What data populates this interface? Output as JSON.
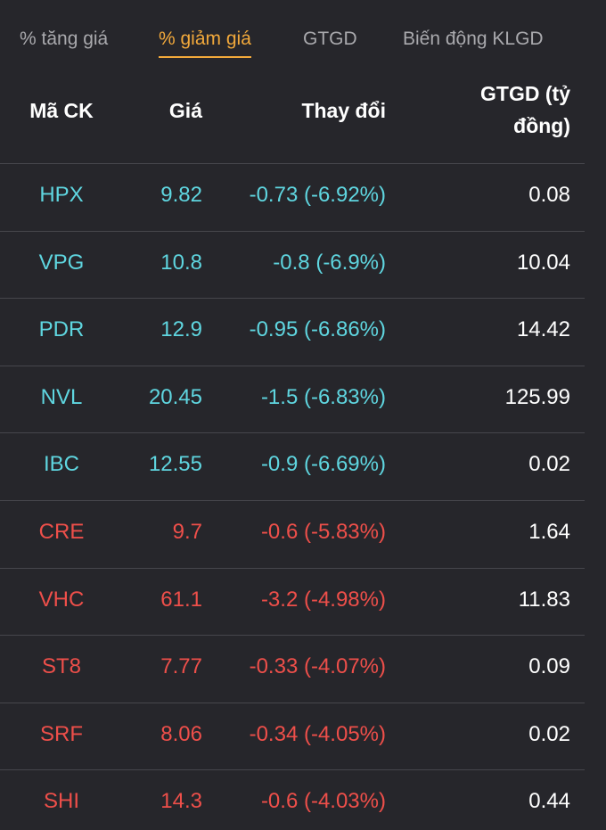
{
  "tabs": [
    "% tăng giá",
    "% giảm giá",
    "GTGD",
    "Biến động KLGD"
  ],
  "active_tab": 1,
  "table": {
    "headers": [
      "Mã CK",
      "Giá",
      "Thay đổi",
      "GTGD (tỷ đồng)"
    ],
    "rows": [
      {
        "cells": [
          "HPX",
          "9.82",
          "-0.73 (-6.92%)",
          "0.08"
        ],
        "color": "#5fd6e0"
      },
      {
        "cells": [
          "VPG",
          "10.8",
          "-0.8 (-6.9%)",
          "10.04"
        ],
        "color": "#5fd6e0"
      },
      {
        "cells": [
          "PDR",
          "12.9",
          "-0.95 (-6.86%)",
          "14.42"
        ],
        "color": "#5fd6e0"
      },
      {
        "cells": [
          "NVL",
          "20.45",
          "-1.5 (-6.83%)",
          "125.99"
        ],
        "color": "#5fd6e0"
      },
      {
        "cells": [
          "IBC",
          "12.55",
          "-0.9 (-6.69%)",
          "0.02"
        ],
        "color": "#5fd6e0"
      },
      {
        "cells": [
          "CRE",
          "9.7",
          "-0.6 (-5.83%)",
          "1.64"
        ],
        "color": "#ee4f4a"
      },
      {
        "cells": [
          "VHC",
          "61.1",
          "-3.2 (-4.98%)",
          "11.83"
        ],
        "color": "#ee4f4a"
      },
      {
        "cells": [
          "ST8",
          "7.77",
          "-0.33 (-4.07%)",
          "0.09"
        ],
        "color": "#ee4f4a"
      },
      {
        "cells": [
          "SRF",
          "8.06",
          "-0.34 (-4.05%)",
          "0.02"
        ],
        "color": "#ee4f4a"
      },
      {
        "cells": [
          "SHI",
          "14.3",
          "-0.6 (-4.03%)",
          "0.44"
        ],
        "color": "#ee4f4a"
      }
    ]
  }
}
